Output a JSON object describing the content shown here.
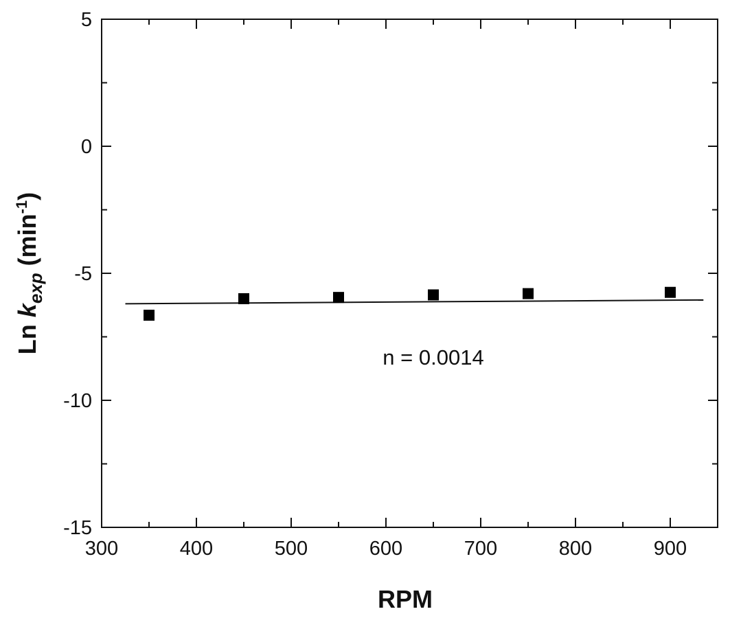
{
  "chart_data": {
    "type": "scatter",
    "xlabel": "RPM",
    "ylabel": {
      "prefix": "Ln ",
      "symbol": "k",
      "subscript": "exp",
      "unit_open": " (min",
      "unit_sup": "-1",
      "unit_close": ")"
    },
    "xlim": [
      300,
      950
    ],
    "ylim": [
      -15,
      5
    ],
    "x_ticks": [
      300,
      400,
      500,
      600,
      700,
      800,
      900
    ],
    "y_ticks": [
      5,
      0,
      -5,
      -10,
      -15
    ],
    "grid": false,
    "series": [
      {
        "marker": "square",
        "color": "#000000",
        "x": [
          350,
          450,
          550,
          650,
          750,
          900
        ],
        "y": [
          -6.65,
          -6.0,
          -5.95,
          -5.85,
          -5.8,
          -5.75
        ]
      }
    ],
    "fit_line": {
      "x": [
        325,
        935
      ],
      "y": [
        -6.2,
        -6.05
      ]
    },
    "annotation": {
      "text": "n = 0.0014",
      "x": 650,
      "y": -8.6
    }
  }
}
